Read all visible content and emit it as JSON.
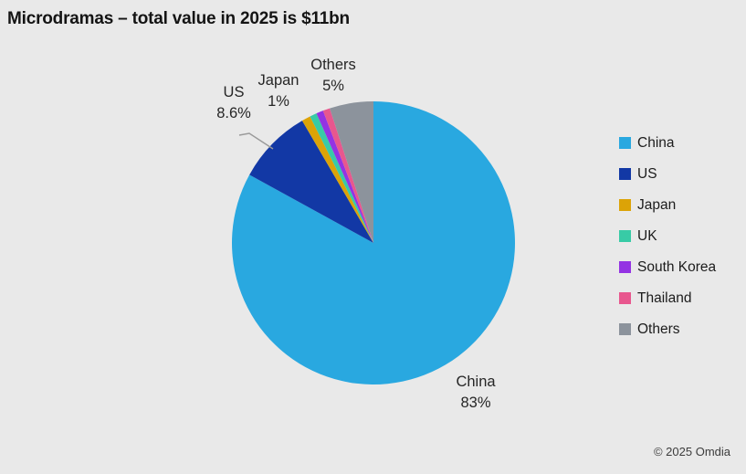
{
  "chart_data": {
    "type": "pie",
    "title": "Microdramas – total value in 2025 is $11bn",
    "legend_position": "right",
    "start_angle_deg": 0,
    "direction": "clockwise",
    "segments": [
      {
        "label": "China",
        "value": 83,
        "display_label": "China",
        "display_value": "83%",
        "color": "#29A8E0"
      },
      {
        "label": "US",
        "value": 8.6,
        "display_label": "US",
        "display_value": "8.6%",
        "color": "#1238A5"
      },
      {
        "label": "Japan",
        "value": 1,
        "display_label": "Japan",
        "display_value": "1%",
        "color": "#DCA307"
      },
      {
        "label": "UK",
        "value": 0.8,
        "color": "#38CBA6"
      },
      {
        "label": "South Korea",
        "value": 0.8,
        "color": "#9433E3"
      },
      {
        "label": "Thailand",
        "value": 0.8,
        "color": "#E8578E"
      },
      {
        "label": "Others",
        "value": 5,
        "display_label": "Others",
        "display_value": "5%",
        "color": "#8C939C"
      }
    ]
  },
  "footer": {
    "copyright": "© 2025 Omdia"
  }
}
